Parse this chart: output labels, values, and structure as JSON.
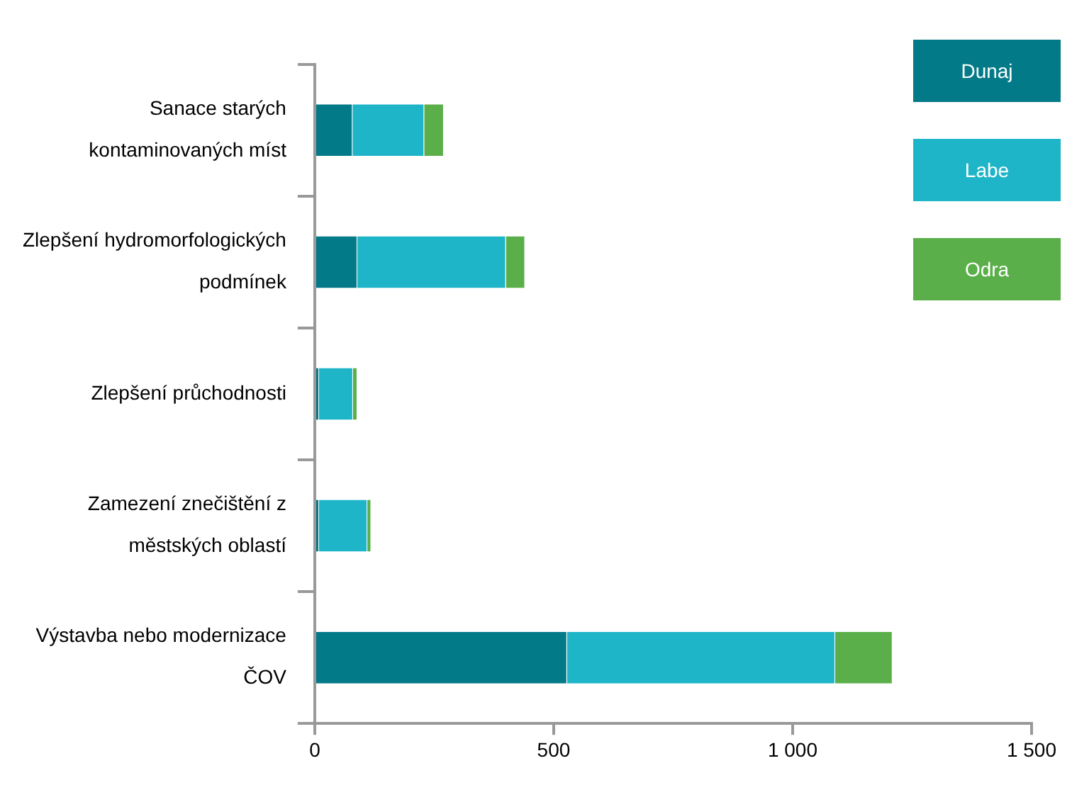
{
  "chart_data": {
    "type": "bar",
    "orientation": "horizontal",
    "stacked": true,
    "categories": [
      "Sanace starých kontaminovaných míst",
      "Zlepšení hydromorfologických podmínek",
      "Zlepšení průchodnosti",
      "Zamezení znečištění z městských oblastí",
      "Výstavba nebo modernizace ČOV"
    ],
    "series": [
      {
        "name": "Dunaj",
        "color": "#037a88",
        "values": [
          79,
          89,
          9,
          9,
          528
        ]
      },
      {
        "name": "Labe",
        "color": "#1fb5c8",
        "values": [
          150,
          311,
          71,
          101,
          561
        ]
      },
      {
        "name": "Odra",
        "color": "#5aaf4a",
        "values": [
          41,
          40,
          9,
          8,
          120
        ]
      }
    ],
    "xlim": [
      0,
      1500
    ],
    "xticks": [
      0,
      500,
      {
        "value": 1000,
        "label": "1 000"
      },
      {
        "value": 1500,
        "label": "1 500"
      }
    ],
    "grid": false,
    "legend": "top right"
  }
}
